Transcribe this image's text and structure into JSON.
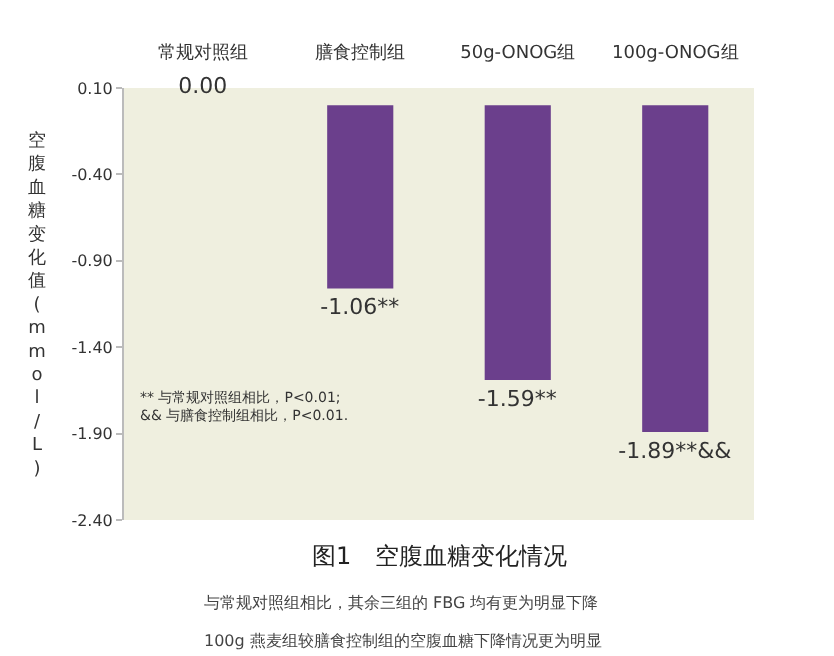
{
  "chart_data": {
    "type": "bar",
    "title": "图1　空腹血糖变化情况",
    "ylabel": "空腹血糖变化值(mmol/L)",
    "categories": [
      "常规对照组",
      "膳食控制组",
      "50g-ONOG组",
      "100g-ONOG组"
    ],
    "values": [
      0.0,
      -1.06,
      -1.59,
      -1.89
    ],
    "color": "#6b3f8c",
    "value_labels": [
      "0.00",
      "-1.06**",
      "-1.59**",
      "-1.89**&&"
    ],
    "ylim": [
      -2.4,
      0.1
    ],
    "yticks": [
      {
        "value": 0.1,
        "label": "0.10"
      },
      {
        "value": -0.4,
        "label": "-0.40"
      },
      {
        "value": -0.9,
        "label": "-0.90"
      },
      {
        "value": -1.4,
        "label": "-1.40"
      },
      {
        "value": -1.9,
        "label": "-1.90"
      },
      {
        "value": -2.4,
        "label": "-2.40"
      }
    ],
    "grid": false,
    "legend": false,
    "annotations": [
      "** 与常规对照组相比，P<0.01;\n&& 与膳食控制组相比，P<0.01.",
      "与常规对照组相比，其余三组的 FBG 均有更为明显下降",
      "100g 燕麦组较膳食控制组的空腹血糖下降情况更为明显"
    ]
  }
}
